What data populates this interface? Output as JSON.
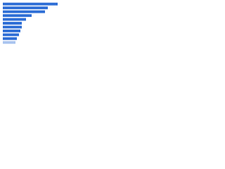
{
  "chart_data": {
    "type": "bar",
    "orientation": "horizontal",
    "categories": [
      null,
      null,
      null,
      null,
      null,
      null,
      null,
      null,
      null,
      null,
      null
    ],
    "values": [
      78,
      64,
      60,
      41,
      33,
      27,
      27,
      25,
      23,
      20,
      18
    ],
    "colors": [
      "#2f6fd6",
      "#2f6fd6",
      "#2f6fd6",
      "#2f6fd6",
      "#2f6fd6",
      "#2f6fd6",
      "#2f6fd6",
      "#2f6fd6",
      "#2f6fd6",
      "#2f6fd6",
      "#a9c4ef"
    ],
    "xlim": [
      0,
      80
    ]
  }
}
